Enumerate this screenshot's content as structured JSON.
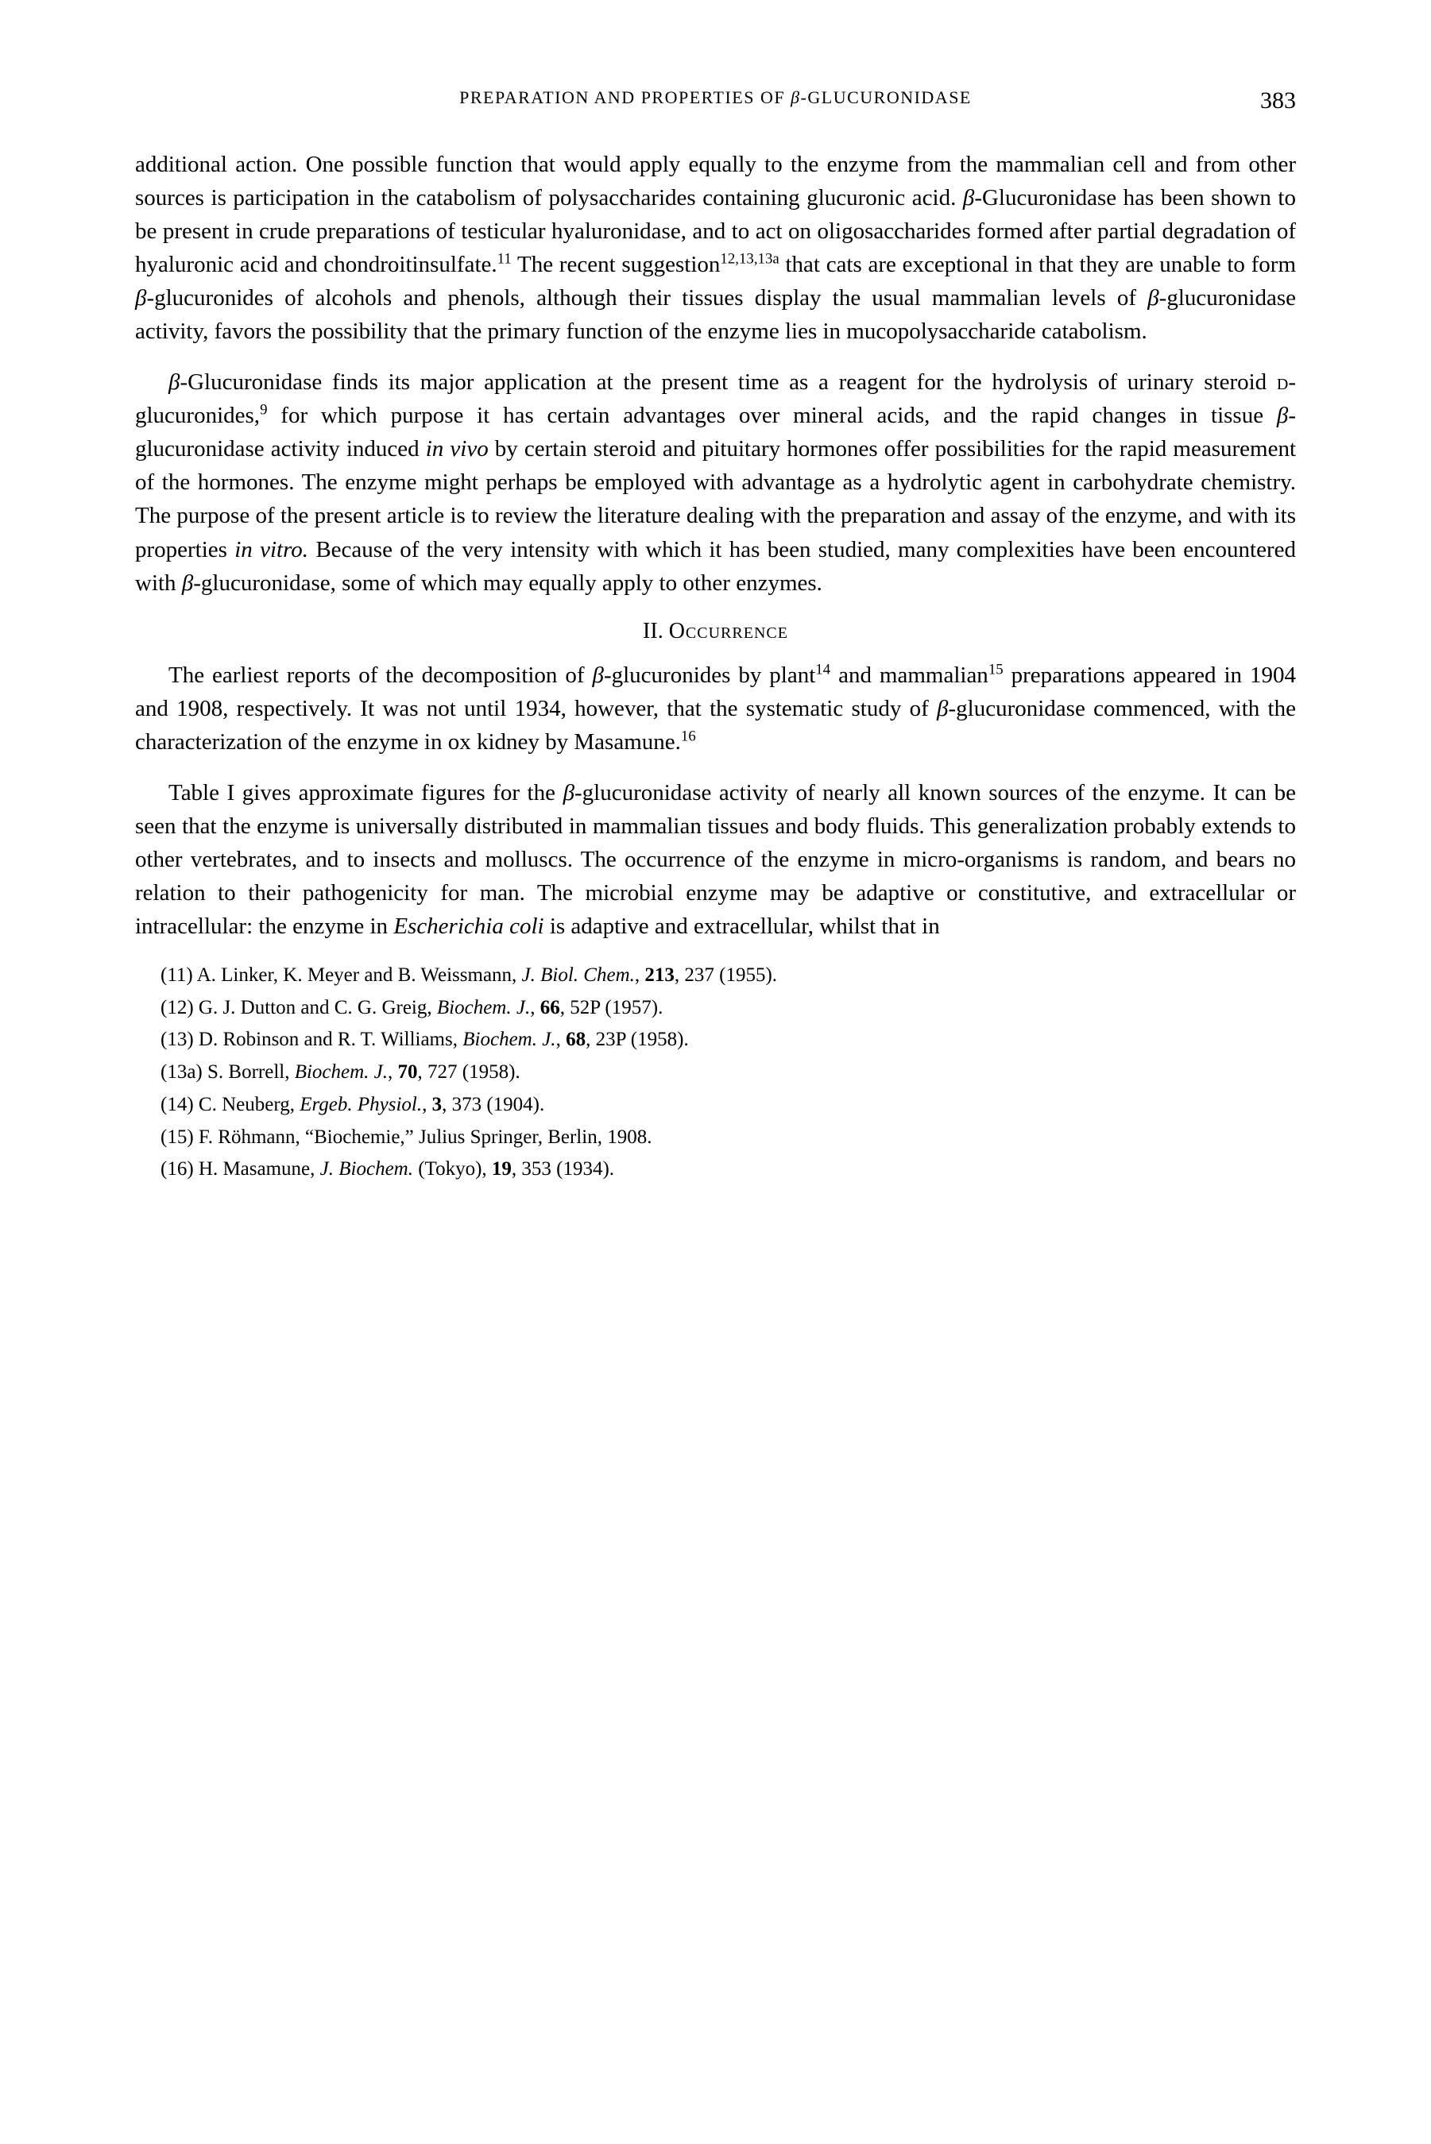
{
  "header": {
    "running_title": "PREPARATION AND PROPERTIES OF β-GLUCURONIDASE",
    "page_number": "383"
  },
  "paragraphs": {
    "p1": "additional action. One possible function that would apply equally to the enzyme from the mammalian cell and from other sources is participation in the catabolism of polysaccharides containing glucuronic acid. β-Glucuronidase has been shown to be present in crude preparations of testicular hyaluronidase, and to act on oligosaccharides formed after partial degradation of hyaluronic acid and chondroitinsulfate.¹¹ The recent suggestion¹²,¹³,¹³ᵃ that cats are exceptional in that they are unable to form β-glucuronides of alcohols and phenols, although their tissues display the usual mammalian levels of β-glucuronidase activity, favors the possibility that the primary function of the enzyme lies in mucopolysaccharide catabolism.",
    "p2": "β-Glucuronidase finds its major application at the present time as a reagent for the hydrolysis of urinary steroid ᴅ-glucuronides,⁹ for which purpose it has certain advantages over mineral acids, and the rapid changes in tissue β-glucuronidase activity induced in vivo by certain steroid and pituitary hormones offer possibilities for the rapid measurement of the hormones. The enzyme might perhaps be employed with advantage as a hydrolytic agent in carbohydrate chemistry. The purpose of the present article is to review the literature dealing with the preparation and assay of the enzyme, and with its properties in vitro. Because of the very intensity with which it has been studied, many complexities have been encountered with β-glucuronidase, some of which may equally apply to other enzymes.",
    "p3": "The earliest reports of the decomposition of β-glucuronides by plant¹⁴ and mammalian¹⁵ preparations appeared in 1904 and 1908, respectively. It was not until 1934, however, that the systematic study of β-glucuronidase commenced, with the characterization of the enzyme in ox kidney by Masamune.¹⁶",
    "p4": "Table I gives approximate figures for the β-glucuronidase activity of nearly all known sources of the enzyme. It can be seen that the enzyme is universally distributed in mammalian tissues and body fluids. This generalization probably extends to other vertebrates, and to insects and molluscs. The occurrence of the enzyme in micro-organisms is random, and bears no relation to their pathogenicity for man. The microbial enzyme may be adaptive or constitutive, and extracellular or intracellular: the enzyme in Escherichia coli is adaptive and extracellular, whilst that in"
  },
  "section_heading": {
    "number": "II.",
    "title": "Occurrence"
  },
  "references": {
    "r11": "(11) A. Linker, K. Meyer and B. Weissmann, J. Biol. Chem., 213, 237 (1955).",
    "r12": "(12) G. J. Dutton and C. G. Greig, Biochem. J., 66, 52P (1957).",
    "r13": "(13) D. Robinson and R. T. Williams, Biochem. J., 68, 23P (1958).",
    "r13a": "(13a) S. Borrell, Biochem. J., 70, 727 (1958).",
    "r14": "(14) C. Neuberg, Ergeb. Physiol., 3, 373 (1904).",
    "r15": "(15) F. Röhmann, \"Biochemie,\" Julius Springer, Berlin, 1908.",
    "r16": "(16) H. Masamune, J. Biochem. (Tokyo), 19, 353 (1934)."
  },
  "styles_readme": "All visible text, page number, paragraphs, section heading, and reference list entries are captured here. Body font ~29px serif on white; running head small caps ~22px; refs ~25px."
}
